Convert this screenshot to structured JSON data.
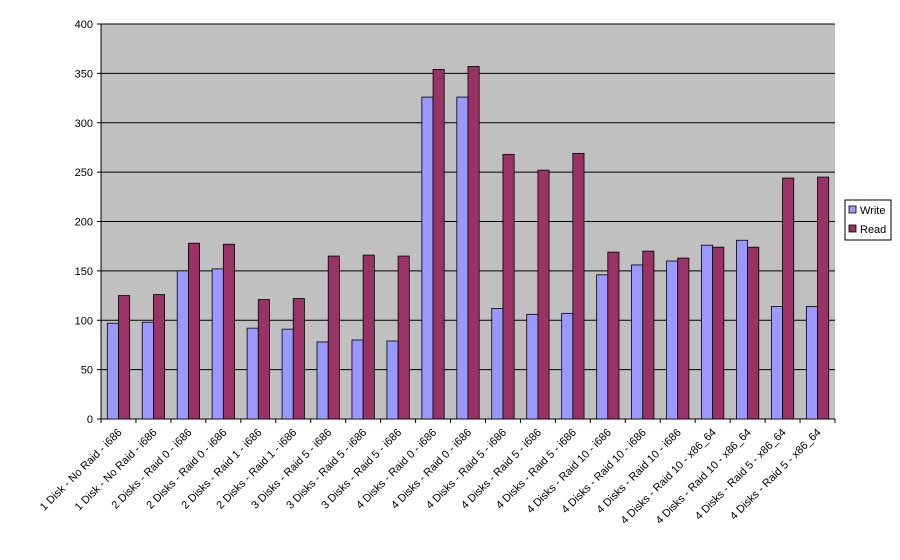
{
  "chart_data": {
    "type": "bar",
    "categories": [
      "1 Disk - No Raid - i686",
      "1 Disk - No Raid - i686",
      "2 Disks - Raid 0 - i686",
      "2 Disks - Raid 0 - i686",
      "2 Disks - Raid 1 - i686",
      "2 Disks - Raid 1 - i686",
      "3 Disks - Raid 5 - i686",
      "3 Disks - Raid 5 - i686",
      "3 Disks - Raid 5 - i686",
      "4 Disks - Raid 0 - i686",
      "4 Disks - Raid 0 - i686",
      "4 Disks - Raid 5 - i686",
      "4 Disks - Raid 5 - i686",
      "4 Disks - Raid 5 - i686",
      "4 Disks - Raid 10 - i686",
      "4 Disks - Raid 10 - i686",
      "4 Disks - Raid 10 - i686",
      "4 Disks - Raid 10 - x86_64",
      "4 Disks - Raid 10 - x86_64",
      "4 Disks - Raid 5 - x86_64",
      "4 Disks - Raid 5 - x86_64"
    ],
    "series": [
      {
        "name": "Write",
        "color": "#9999ff",
        "values": [
          97,
          98,
          150,
          152,
          92,
          91,
          78,
          80,
          79,
          326,
          326,
          112,
          106,
          107,
          146,
          156,
          160,
          176,
          181,
          114,
          114
        ]
      },
      {
        "name": "Read",
        "color": "#993366",
        "values": [
          125,
          126,
          178,
          177,
          121,
          122,
          165,
          166,
          165,
          354,
          357,
          268,
          252,
          269,
          169,
          170,
          163,
          174,
          174,
          244,
          245
        ]
      }
    ],
    "ylim": [
      0,
      400
    ],
    "yticks": [
      0,
      50,
      100,
      150,
      200,
      250,
      300,
      350,
      400
    ],
    "grid": true,
    "legend": "right"
  }
}
